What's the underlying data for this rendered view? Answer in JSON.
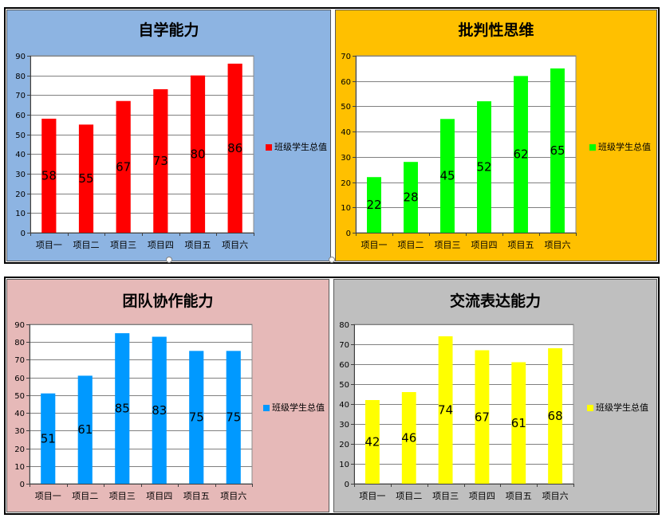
{
  "chart_data": [
    {
      "type": "bar",
      "title": "自学能力",
      "categories": [
        "项目一",
        "项目二",
        "项目三",
        "项目四",
        "项目五",
        "项目六"
      ],
      "series": [
        {
          "name": "班级学生总值",
          "values": [
            58,
            55,
            67,
            73,
            80,
            86
          ],
          "color": "#FF0000"
        }
      ],
      "ylim": [
        0,
        90
      ],
      "yticks": [
        0,
        10,
        20,
        30,
        40,
        50,
        60,
        70,
        80,
        90
      ],
      "grid": true,
      "legend": "right",
      "data_labels": true,
      "background": "#8DB4E2"
    },
    {
      "type": "bar",
      "title": "批判性思维",
      "categories": [
        "项目一",
        "项目二",
        "项目三",
        "项目四",
        "项目五",
        "项目六"
      ],
      "series": [
        {
          "name": "班级学生总值",
          "values": [
            22,
            28,
            45,
            52,
            62,
            65
          ],
          "color": "#00FF00"
        }
      ],
      "ylim": [
        0,
        70
      ],
      "yticks": [
        0,
        10,
        20,
        30,
        40,
        50,
        60,
        70
      ],
      "grid": true,
      "legend": "right",
      "data_labels": true,
      "background": "#FFC000"
    },
    {
      "type": "bar",
      "title": "团队协作能力",
      "categories": [
        "项目一",
        "项目二",
        "项目三",
        "项目四",
        "项目五",
        "项目六"
      ],
      "series": [
        {
          "name": "班级学生总值",
          "values": [
            51,
            61,
            85,
            83,
            75,
            75
          ],
          "color": "#0099FF"
        }
      ],
      "ylim": [
        0,
        90
      ],
      "yticks": [
        0,
        10,
        20,
        30,
        40,
        50,
        60,
        70,
        80,
        90
      ],
      "grid": true,
      "legend": "right",
      "data_labels": true,
      "background": "#E6B9B8"
    },
    {
      "type": "bar",
      "title": "交流表达能力",
      "categories": [
        "项目一",
        "项目二",
        "项目三",
        "项目四",
        "项目五",
        "项目六"
      ],
      "series": [
        {
          "name": "班级学生总值",
          "values": [
            42,
            46,
            74,
            67,
            61,
            68
          ],
          "color": "#FFFF00"
        }
      ],
      "ylim": [
        0,
        80
      ],
      "yticks": [
        0,
        10,
        20,
        30,
        40,
        50,
        60,
        70,
        80
      ],
      "grid": true,
      "legend": "right",
      "data_labels": true,
      "background": "#BFBFBF"
    }
  ]
}
